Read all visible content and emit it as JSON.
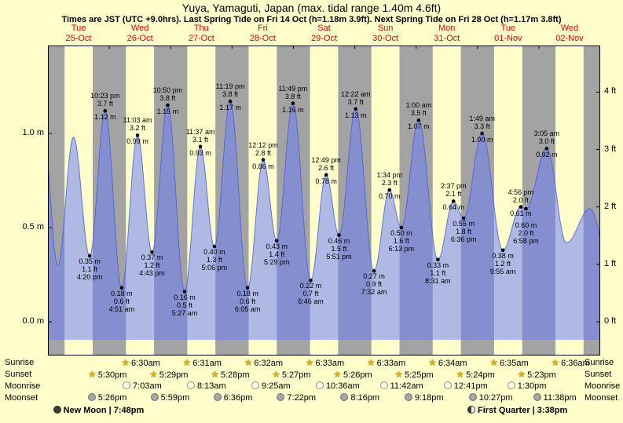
{
  "chart_data": {
    "type": "area",
    "title": "Yuya, Yamaguti, Japan (max. tidal range 1.40m 4.6ft)",
    "subtitle": "Times are JST (UTC +9.0hrs). Last Spring Tide on Fri 14 Oct (h=1.18m 3.9ft). Next Spring Tide on Fri 28 Oct (h=1.17m 3.8ft)",
    "categories": [
      "Tue 25-Oct",
      "Wed 26-Oct",
      "Thu 27-Oct",
      "Fri 28-Oct",
      "Sat 29-Oct",
      "Sun 30-Oct",
      "Mon 31-Oct",
      "Tue 01-Nov",
      "Wed 02-Nov"
    ],
    "y_axis_left": {
      "unit": "m",
      "ticks": [
        {
          "label": "0.0 m",
          "m": 0
        },
        {
          "label": "0.5 m",
          "m": 0.5
        },
        {
          "label": "1.0 m",
          "m": 1.0
        }
      ]
    },
    "y_axis_right": {
      "unit": "ft",
      "ticks": [
        {
          "label": "0 ft",
          "m": 0
        },
        {
          "label": "1 ft",
          "m": 0.3048
        },
        {
          "label": "2 ft",
          "m": 0.6096
        },
        {
          "label": "3 ft",
          "m": 0.9144
        },
        {
          "label": "4 ft",
          "m": 1.2192
        }
      ]
    },
    "extremes": [
      {
        "t": -2.2,
        "h": 1.08
      },
      {
        "t": 3.85,
        "h": 0.3
      },
      {
        "t": 10.0,
        "h": 0.98
      },
      {
        "day": "Tue 25-Oct",
        "type": "low",
        "time": "4:20 pm",
        "ft_label": "1.1 ft",
        "m_label": "0.35 m",
        "t": 16.33,
        "h": 0.35
      },
      {
        "day": "Tue 25-Oct",
        "type": "high",
        "time": "10:23 pm",
        "ft_label": "3.7 ft",
        "m_label": "1.12 m",
        "t": 22.38,
        "h": 1.12
      },
      {
        "day": "Wed 26-Oct",
        "type": "low",
        "time": "4:51 am",
        "ft_label": "0.6 ft",
        "m_label": "0.18 m",
        "t": 28.85,
        "h": 0.18
      },
      {
        "day": "Wed 26-Oct",
        "type": "high",
        "time": "11:03 am",
        "ft_label": "3.2 ft",
        "m_label": "0.99 m",
        "t": 35.05,
        "h": 0.99
      },
      {
        "day": "Wed 26-Oct",
        "type": "low",
        "time": "4:43 pm",
        "ft_label": "1.2 ft",
        "m_label": "0.37 m",
        "t": 40.72,
        "h": 0.37
      },
      {
        "day": "Wed 26-Oct",
        "type": "high",
        "time": "10:50 pm",
        "ft_label": "3.8 ft",
        "m_label": "1.15 m",
        "t": 46.83,
        "h": 1.15
      },
      {
        "day": "Thu 27-Oct",
        "type": "low",
        "time": "5:27 am",
        "ft_label": "0.5 ft",
        "m_label": "0.16 m",
        "t": 53.45,
        "h": 0.16
      },
      {
        "day": "Thu 27-Oct",
        "type": "high",
        "time": "11:37 am",
        "ft_label": "3.1 ft",
        "m_label": "0.93 m",
        "t": 59.62,
        "h": 0.93
      },
      {
        "day": "Thu 27-Oct",
        "type": "low",
        "time": "5:06 pm",
        "ft_label": "1.3 ft",
        "m_label": "0.40 m",
        "t": 65.1,
        "h": 0.4
      },
      {
        "day": "Thu 27-Oct",
        "type": "high",
        "time": "11:19 pm",
        "ft_label": "3.8 ft",
        "m_label": "1.17 m",
        "t": 71.32,
        "h": 1.17
      },
      {
        "day": "Fri 28-Oct",
        "type": "low",
        "time": "6:05 am",
        "ft_label": "0.6 ft",
        "m_label": "0.18 m",
        "t": 78.08,
        "h": 0.18
      },
      {
        "day": "Fri 28-Oct",
        "type": "high",
        "time": "12:12 pm",
        "ft_label": "2.8 ft",
        "m_label": "0.86 m",
        "t": 84.2,
        "h": 0.86
      },
      {
        "day": "Fri 28-Oct",
        "type": "low",
        "time": "5:29 pm",
        "ft_label": "1.4 ft",
        "m_label": "0.43 m",
        "t": 89.48,
        "h": 0.43
      },
      {
        "day": "Fri 28-Oct",
        "type": "high",
        "time": "11:49 pm",
        "ft_label": "3.8 ft",
        "m_label": "1.16 m",
        "t": 95.82,
        "h": 1.16
      },
      {
        "day": "Sat 29-Oct",
        "type": "low",
        "time": "6:46 am",
        "ft_label": "0.7 ft",
        "m_label": "0.22 m",
        "t": 102.77,
        "h": 0.22
      },
      {
        "day": "Sat 29-Oct",
        "type": "high",
        "time": "12:49 pm",
        "ft_label": "2.6 ft",
        "m_label": "0.78 m",
        "t": 108.82,
        "h": 0.78
      },
      {
        "day": "Sat 29-Oct",
        "type": "low",
        "time": "5:51 pm",
        "ft_label": "1.5 ft",
        "m_label": "0.46 m",
        "t": 113.85,
        "h": 0.46
      },
      {
        "day": "Sun 30-Oct",
        "type": "high",
        "time": "12:22 am",
        "ft_label": "3.7 ft",
        "m_label": "1.13 m",
        "t": 120.37,
        "h": 1.13
      },
      {
        "day": "Sun 30-Oct",
        "type": "low",
        "time": "7:32 am",
        "ft_label": "0.9 ft",
        "m_label": "0.27 m",
        "t": 127.53,
        "h": 0.27
      },
      {
        "day": "Sun 30-Oct",
        "type": "high",
        "time": "1:34 pm",
        "ft_label": "2.3 ft",
        "m_label": "0.70 m",
        "t": 133.57,
        "h": 0.7
      },
      {
        "day": "Sun 30-Oct",
        "type": "low",
        "time": "6:13 pm",
        "ft_label": "1.6 ft",
        "m_label": "0.50 m",
        "t": 138.22,
        "h": 0.5
      },
      {
        "day": "Mon 31-Oct",
        "type": "high",
        "time": "1:00 am",
        "ft_label": "3.5 ft",
        "m_label": "1.07 m",
        "t": 145.0,
        "h": 1.07
      },
      {
        "day": "Mon 31-Oct",
        "type": "low",
        "time": "8:31 am",
        "ft_label": "1.1 ft",
        "m_label": "0.33 m",
        "t": 152.52,
        "h": 0.33
      },
      {
        "day": "Mon 31-Oct",
        "type": "high",
        "time": "2:37 pm",
        "ft_label": "2.1 ft",
        "m_label": "0.64 m",
        "t": 158.62,
        "h": 0.64
      },
      {
        "day": "Mon 31-Oct",
        "type": "low",
        "time": "6:36 pm",
        "ft_label": "1.8 ft",
        "m_label": "0.55 m",
        "t": 162.6,
        "h": 0.55
      },
      {
        "day": "Tue 01-Nov",
        "type": "high",
        "time": "1:49 am",
        "ft_label": "3.3 ft",
        "m_label": "1.00 m",
        "t": 169.82,
        "h": 1.0
      },
      {
        "day": "Tue 01-Nov",
        "type": "low",
        "time": "9:55 am",
        "ft_label": "1.2 ft",
        "m_label": "0.38 m",
        "t": 177.92,
        "h": 0.38
      },
      {
        "day": "Tue 01-Nov",
        "type": "high",
        "time": "4:56 pm",
        "ft_label": "2.0 ft",
        "m_label": "0.61 m",
        "t": 184.93,
        "h": 0.61
      },
      {
        "day": "Tue 01-Nov",
        "type": "low",
        "time": "6:58 pm",
        "ft_label": "2.0 ft",
        "m_label": "0.60 m",
        "t": 186.97,
        "h": 0.6,
        "label_dy": 14
      },
      {
        "day": "Wed 02-Nov",
        "type": "high",
        "time": "3:05 am",
        "ft_label": "3.0 ft",
        "m_label": "0.92 m",
        "t": 195.08,
        "h": 0.92
      },
      {
        "t": 202.8,
        "h": 0.42
      },
      {
        "t": 212.0,
        "h": 0.6
      },
      {
        "t": 219.0,
        "h": 0.35
      }
    ],
    "colors": {
      "background": "#ffffcc",
      "night_band": "#a3a3a3",
      "tide_fill": "rgba(110,128,245,0.55)",
      "tide_stroke": "rgba(70,90,220,0.8)",
      "day_label": "#e00000",
      "annotation": "#000000"
    }
  },
  "days": [
    {
      "weekday": "Tue",
      "date": "25-Oct"
    },
    {
      "weekday": "Wed",
      "date": "26-Oct"
    },
    {
      "weekday": "Thu",
      "date": "27-Oct"
    },
    {
      "weekday": "Fri",
      "date": "28-Oct"
    },
    {
      "weekday": "Sat",
      "date": "29-Oct"
    },
    {
      "weekday": "Sun",
      "date": "30-Oct"
    },
    {
      "weekday": "Mon",
      "date": "31-Oct"
    },
    {
      "weekday": "Tue",
      "date": "01-Nov"
    },
    {
      "weekday": "Wed",
      "date": "02-Nov"
    }
  ],
  "astro": {
    "rows": [
      {
        "id": "sunrise",
        "label": "Sunrise",
        "icon": "sun",
        "entries": [
          {
            "time": "6:30am",
            "t": 30.5
          },
          {
            "time": "6:31am",
            "t": 54.52
          },
          {
            "time": "6:32am",
            "t": 78.53
          },
          {
            "time": "6:33am",
            "t": 102.55
          },
          {
            "time": "6:33am",
            "t": 126.55
          },
          {
            "time": "6:34am",
            "t": 150.57
          },
          {
            "time": "6:35am",
            "t": 174.58
          },
          {
            "time": "6:36am",
            "t": 198.6
          }
        ]
      },
      {
        "id": "sunset",
        "label": "Sunset",
        "icon": "sun",
        "entries": [
          {
            "time": "5:30pm",
            "t": 17.5
          },
          {
            "time": "5:29pm",
            "t": 41.48
          },
          {
            "time": "5:28pm",
            "t": 65.47
          },
          {
            "time": "5:27pm",
            "t": 89.45
          },
          {
            "time": "5:26pm",
            "t": 113.43
          },
          {
            "time": "5:25pm",
            "t": 137.42
          },
          {
            "time": "5:24pm",
            "t": 161.4
          },
          {
            "time": "5:23pm",
            "t": 185.38
          }
        ]
      },
      {
        "id": "moonrise",
        "label": "Moonrise",
        "icon": "moon-light",
        "entries": [
          {
            "time": "7:03am",
            "t": 31.05
          },
          {
            "time": "8:13am",
            "t": 56.22
          },
          {
            "time": "9:25am",
            "t": 81.42
          },
          {
            "time": "10:36am",
            "t": 106.6
          },
          {
            "time": "11:42am",
            "t": 131.7
          },
          {
            "time": "12:41pm",
            "t": 156.68
          },
          {
            "time": "1:30pm",
            "t": 181.5
          }
        ]
      },
      {
        "id": "moonset",
        "label": "Moonset",
        "icon": "moon-dark",
        "entries": [
          {
            "time": "5:26pm",
            "t": 17.43
          },
          {
            "time": "5:59pm",
            "t": 41.98
          },
          {
            "time": "6:36pm",
            "t": 66.6
          },
          {
            "time": "7:22pm",
            "t": 91.37
          },
          {
            "time": "8:16pm",
            "t": 116.27
          },
          {
            "time": "9:18pm",
            "t": 141.3
          },
          {
            "time": "10:27pm",
            "t": 166.45
          },
          {
            "time": "11:38pm",
            "t": 191.63
          }
        ]
      }
    ],
    "phases": [
      {
        "name": "New Moon",
        "time": "7:48pm",
        "t": 19.8,
        "icon": "new-moon"
      },
      {
        "name": "First Quarter",
        "time": "3:38pm",
        "t": 183.63,
        "icon": "first-quarter"
      }
    ]
  }
}
